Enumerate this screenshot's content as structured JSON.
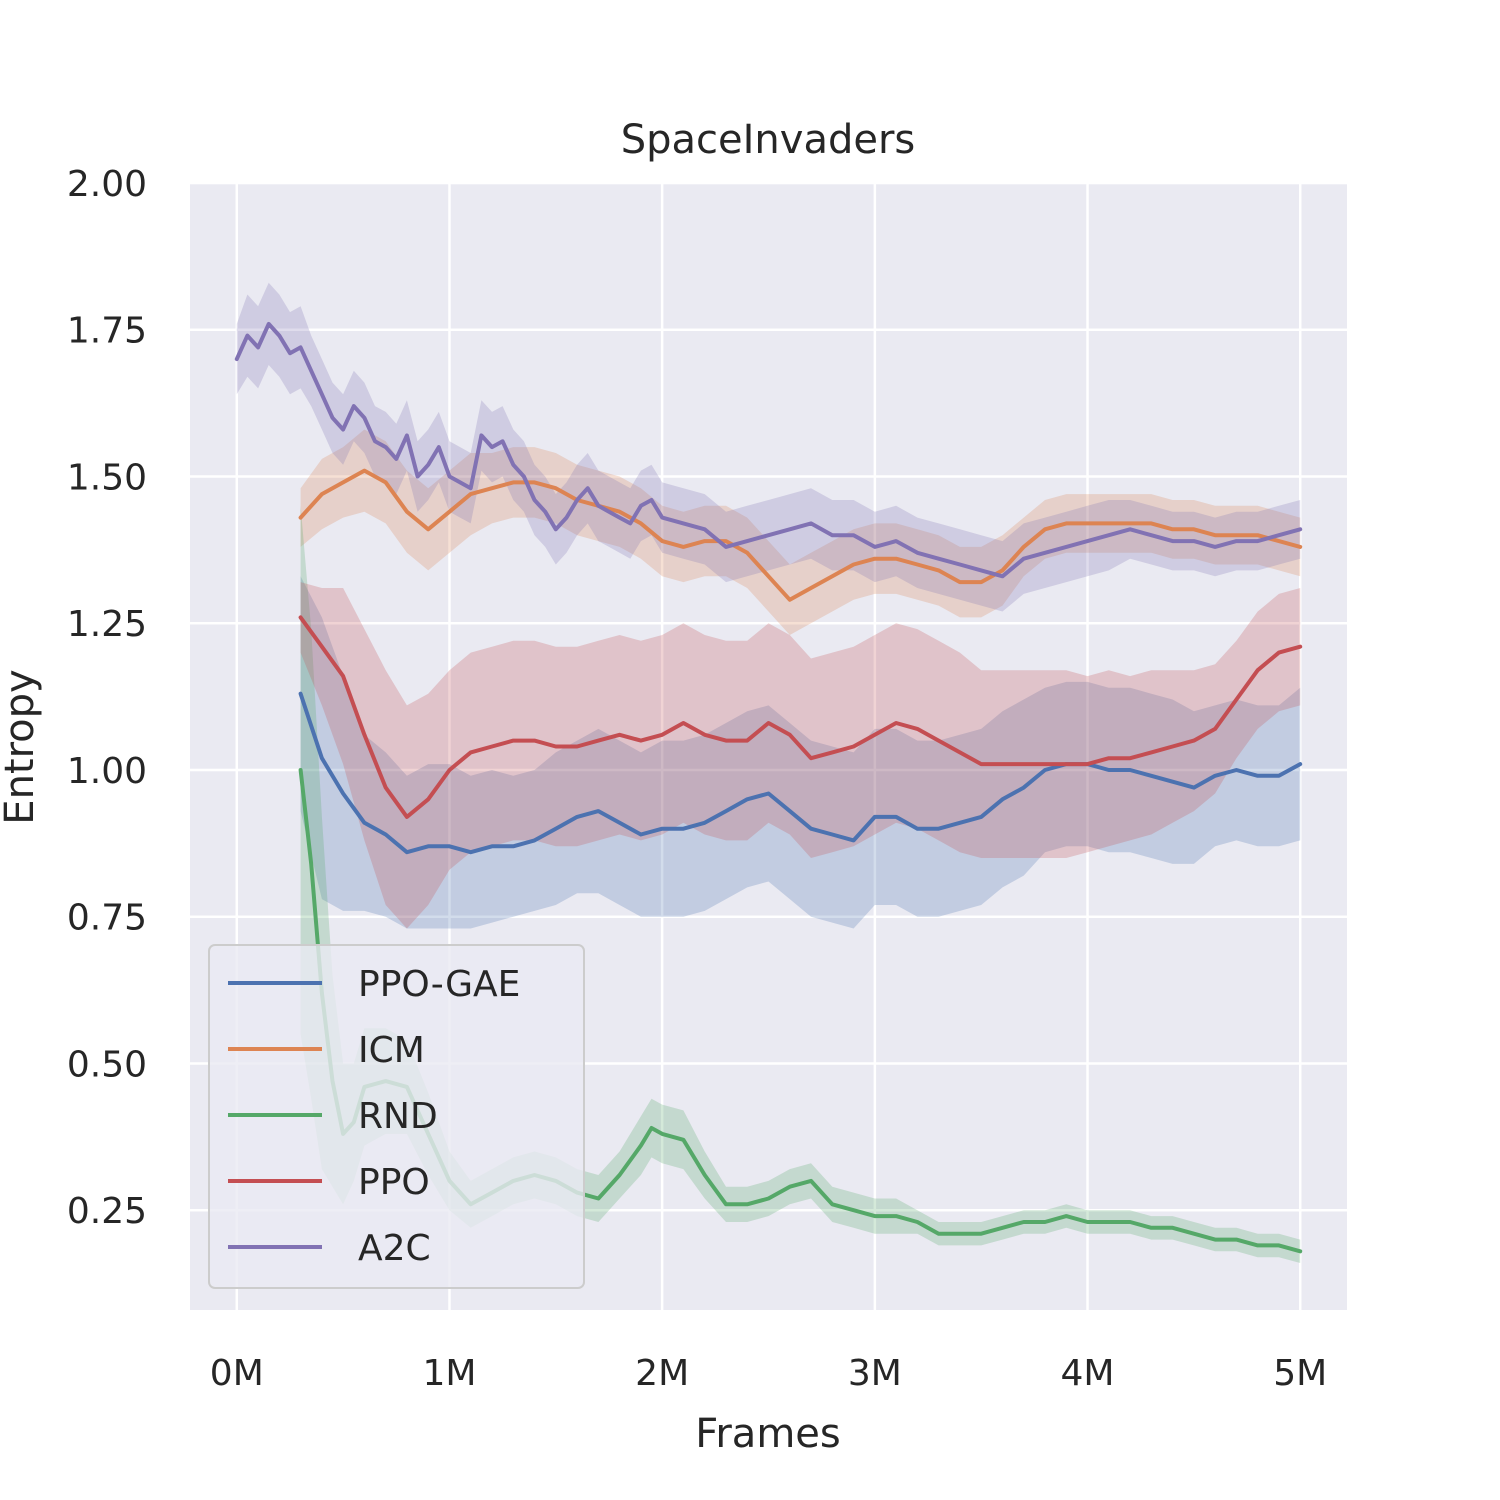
{
  "chart_data": {
    "type": "line",
    "title": "SpaceInvaders",
    "xlabel": "Frames",
    "ylabel": "Entropy",
    "xlim": [
      -0.22,
      5.22
    ],
    "ylim": [
      0.08,
      2.0
    ],
    "xticks": [
      0,
      1,
      2,
      3,
      4,
      5
    ],
    "xtick_labels": [
      "0M",
      "1M",
      "2M",
      "3M",
      "4M",
      "5M"
    ],
    "yticks": [
      0.25,
      0.5,
      0.75,
      1.0,
      1.25,
      1.5,
      1.75,
      2.0
    ],
    "ytick_labels": [
      "0.25",
      "0.50",
      "0.75",
      "1.00",
      "1.25",
      "1.50",
      "1.75",
      "2.00"
    ],
    "grid": true,
    "legend_position": "lower-left",
    "series": [
      {
        "name": "PPO-GAE",
        "color": "#4c72b0",
        "x": [
          0.3,
          0.4,
          0.5,
          0.6,
          0.7,
          0.8,
          0.9,
          1.0,
          1.1,
          1.2,
          1.3,
          1.4,
          1.5,
          1.6,
          1.7,
          1.8,
          1.9,
          2.0,
          2.1,
          2.2,
          2.3,
          2.4,
          2.5,
          2.6,
          2.7,
          2.8,
          2.9,
          3.0,
          3.1,
          3.2,
          3.3,
          3.4,
          3.5,
          3.6,
          3.7,
          3.8,
          3.9,
          4.0,
          4.1,
          4.2,
          4.3,
          4.4,
          4.5,
          4.6,
          4.7,
          4.8,
          4.9,
          5.0
        ],
        "y": [
          1.13,
          1.02,
          0.96,
          0.91,
          0.89,
          0.86,
          0.87,
          0.87,
          0.86,
          0.87,
          0.87,
          0.88,
          0.9,
          0.92,
          0.93,
          0.91,
          0.89,
          0.9,
          0.9,
          0.91,
          0.93,
          0.95,
          0.96,
          0.93,
          0.9,
          0.89,
          0.88,
          0.92,
          0.92,
          0.9,
          0.9,
          0.91,
          0.92,
          0.95,
          0.97,
          1.0,
          1.01,
          1.01,
          1.0,
          1.0,
          0.99,
          0.98,
          0.97,
          0.99,
          1.0,
          0.99,
          0.99,
          1.01
        ],
        "band": [
          0.2,
          0.24,
          0.2,
          0.15,
          0.14,
          0.13,
          0.14,
          0.14,
          0.13,
          0.13,
          0.12,
          0.12,
          0.13,
          0.13,
          0.14,
          0.14,
          0.14,
          0.15,
          0.15,
          0.15,
          0.15,
          0.15,
          0.15,
          0.15,
          0.15,
          0.15,
          0.15,
          0.15,
          0.15,
          0.15,
          0.15,
          0.15,
          0.15,
          0.15,
          0.15,
          0.14,
          0.14,
          0.14,
          0.14,
          0.14,
          0.14,
          0.14,
          0.13,
          0.12,
          0.12,
          0.12,
          0.12,
          0.13
        ]
      },
      {
        "name": "ICM",
        "color": "#dd8452",
        "x": [
          0.3,
          0.4,
          0.5,
          0.6,
          0.7,
          0.8,
          0.9,
          1.0,
          1.1,
          1.2,
          1.3,
          1.4,
          1.5,
          1.6,
          1.7,
          1.8,
          1.9,
          2.0,
          2.1,
          2.2,
          2.3,
          2.4,
          2.5,
          2.6,
          2.7,
          2.8,
          2.9,
          3.0,
          3.1,
          3.2,
          3.3,
          3.4,
          3.5,
          3.6,
          3.7,
          3.8,
          3.9,
          4.0,
          4.1,
          4.2,
          4.3,
          4.4,
          4.5,
          4.6,
          4.7,
          4.8,
          4.9,
          5.0
        ],
        "y": [
          1.43,
          1.47,
          1.49,
          1.51,
          1.49,
          1.44,
          1.41,
          1.44,
          1.47,
          1.48,
          1.49,
          1.49,
          1.48,
          1.46,
          1.45,
          1.44,
          1.42,
          1.39,
          1.38,
          1.39,
          1.39,
          1.37,
          1.33,
          1.29,
          1.31,
          1.33,
          1.35,
          1.36,
          1.36,
          1.35,
          1.34,
          1.32,
          1.32,
          1.34,
          1.38,
          1.41,
          1.42,
          1.42,
          1.42,
          1.42,
          1.42,
          1.41,
          1.41,
          1.4,
          1.4,
          1.4,
          1.39,
          1.38
        ],
        "band": [
          0.05,
          0.06,
          0.06,
          0.07,
          0.07,
          0.07,
          0.07,
          0.07,
          0.07,
          0.06,
          0.06,
          0.06,
          0.06,
          0.06,
          0.06,
          0.06,
          0.06,
          0.06,
          0.06,
          0.06,
          0.06,
          0.06,
          0.06,
          0.06,
          0.06,
          0.06,
          0.06,
          0.06,
          0.06,
          0.06,
          0.06,
          0.06,
          0.06,
          0.06,
          0.05,
          0.05,
          0.05,
          0.05,
          0.05,
          0.05,
          0.05,
          0.05,
          0.05,
          0.05,
          0.05,
          0.05,
          0.05,
          0.05
        ]
      },
      {
        "name": "RND",
        "color": "#55a868",
        "x": [
          0.3,
          0.35,
          0.4,
          0.45,
          0.5,
          0.55,
          0.6,
          0.7,
          0.8,
          0.9,
          1.0,
          1.1,
          1.2,
          1.3,
          1.4,
          1.5,
          1.6,
          1.7,
          1.8,
          1.9,
          1.95,
          2.0,
          2.1,
          2.2,
          2.3,
          2.4,
          2.5,
          2.6,
          2.7,
          2.8,
          2.9,
          3.0,
          3.1,
          3.2,
          3.3,
          3.4,
          3.5,
          3.6,
          3.7,
          3.8,
          3.9,
          4.0,
          4.1,
          4.2,
          4.3,
          4.4,
          4.5,
          4.6,
          4.7,
          4.8,
          4.9,
          5.0
        ],
        "y": [
          1.0,
          0.84,
          0.62,
          0.47,
          0.38,
          0.4,
          0.46,
          0.47,
          0.46,
          0.38,
          0.3,
          0.26,
          0.28,
          0.3,
          0.31,
          0.3,
          0.28,
          0.27,
          0.31,
          0.36,
          0.39,
          0.38,
          0.37,
          0.31,
          0.26,
          0.26,
          0.27,
          0.29,
          0.3,
          0.26,
          0.25,
          0.24,
          0.24,
          0.23,
          0.21,
          0.21,
          0.21,
          0.22,
          0.23,
          0.23,
          0.24,
          0.23,
          0.23,
          0.23,
          0.22,
          0.22,
          0.21,
          0.2,
          0.2,
          0.19,
          0.19,
          0.18
        ],
        "band": [
          0.45,
          0.4,
          0.3,
          0.18,
          0.12,
          0.1,
          0.1,
          0.09,
          0.08,
          0.07,
          0.05,
          0.04,
          0.04,
          0.04,
          0.04,
          0.04,
          0.04,
          0.04,
          0.04,
          0.05,
          0.05,
          0.05,
          0.05,
          0.04,
          0.03,
          0.03,
          0.03,
          0.03,
          0.03,
          0.03,
          0.03,
          0.03,
          0.03,
          0.02,
          0.02,
          0.02,
          0.02,
          0.02,
          0.02,
          0.02,
          0.02,
          0.02,
          0.02,
          0.02,
          0.02,
          0.02,
          0.02,
          0.02,
          0.02,
          0.02,
          0.02,
          0.02
        ]
      },
      {
        "name": "PPO",
        "color": "#c44e52",
        "x": [
          0.3,
          0.4,
          0.5,
          0.6,
          0.7,
          0.8,
          0.9,
          1.0,
          1.1,
          1.2,
          1.3,
          1.4,
          1.5,
          1.6,
          1.7,
          1.8,
          1.9,
          2.0,
          2.1,
          2.2,
          2.3,
          2.4,
          2.5,
          2.6,
          2.7,
          2.8,
          2.9,
          3.0,
          3.1,
          3.2,
          3.3,
          3.4,
          3.5,
          3.6,
          3.7,
          3.8,
          3.9,
          4.0,
          4.1,
          4.2,
          4.3,
          4.4,
          4.5,
          4.6,
          4.7,
          4.8,
          4.9,
          5.0
        ],
        "y": [
          1.26,
          1.21,
          1.16,
          1.06,
          0.97,
          0.92,
          0.95,
          1.0,
          1.03,
          1.04,
          1.05,
          1.05,
          1.04,
          1.04,
          1.05,
          1.06,
          1.05,
          1.06,
          1.08,
          1.06,
          1.05,
          1.05,
          1.08,
          1.06,
          1.02,
          1.03,
          1.04,
          1.06,
          1.08,
          1.07,
          1.05,
          1.03,
          1.01,
          1.01,
          1.01,
          1.01,
          1.01,
          1.01,
          1.02,
          1.02,
          1.03,
          1.04,
          1.05,
          1.07,
          1.12,
          1.17,
          1.2,
          1.21
        ],
        "band": [
          0.06,
          0.1,
          0.15,
          0.18,
          0.2,
          0.19,
          0.18,
          0.17,
          0.17,
          0.17,
          0.17,
          0.17,
          0.17,
          0.17,
          0.17,
          0.17,
          0.17,
          0.17,
          0.17,
          0.17,
          0.17,
          0.17,
          0.17,
          0.17,
          0.17,
          0.17,
          0.17,
          0.17,
          0.17,
          0.17,
          0.17,
          0.17,
          0.16,
          0.16,
          0.16,
          0.16,
          0.16,
          0.15,
          0.15,
          0.14,
          0.14,
          0.13,
          0.12,
          0.11,
          0.1,
          0.1,
          0.1,
          0.1
        ]
      },
      {
        "name": "A2C",
        "color": "#8172b3",
        "x": [
          0.0,
          0.05,
          0.1,
          0.15,
          0.2,
          0.25,
          0.3,
          0.35,
          0.4,
          0.45,
          0.5,
          0.55,
          0.6,
          0.65,
          0.7,
          0.75,
          0.8,
          0.85,
          0.9,
          0.95,
          1.0,
          1.05,
          1.1,
          1.15,
          1.2,
          1.25,
          1.3,
          1.35,
          1.4,
          1.45,
          1.5,
          1.55,
          1.6,
          1.65,
          1.7,
          1.75,
          1.8,
          1.85,
          1.9,
          1.95,
          2.0,
          2.1,
          2.2,
          2.3,
          2.4,
          2.5,
          2.6,
          2.7,
          2.8,
          2.9,
          3.0,
          3.1,
          3.2,
          3.3,
          3.4,
          3.5,
          3.6,
          3.7,
          3.8,
          3.9,
          4.0,
          4.1,
          4.2,
          4.3,
          4.4,
          4.5,
          4.6,
          4.7,
          4.8,
          4.9,
          5.0
        ],
        "y": [
          1.7,
          1.74,
          1.72,
          1.76,
          1.74,
          1.71,
          1.72,
          1.68,
          1.64,
          1.6,
          1.58,
          1.62,
          1.6,
          1.56,
          1.55,
          1.53,
          1.57,
          1.5,
          1.52,
          1.55,
          1.5,
          1.49,
          1.48,
          1.57,
          1.55,
          1.56,
          1.52,
          1.5,
          1.46,
          1.44,
          1.41,
          1.43,
          1.46,
          1.48,
          1.45,
          1.44,
          1.43,
          1.42,
          1.45,
          1.46,
          1.43,
          1.42,
          1.41,
          1.38,
          1.39,
          1.4,
          1.41,
          1.42,
          1.4,
          1.4,
          1.38,
          1.39,
          1.37,
          1.36,
          1.35,
          1.34,
          1.33,
          1.36,
          1.37,
          1.38,
          1.39,
          1.4,
          1.41,
          1.4,
          1.39,
          1.39,
          1.38,
          1.39,
          1.39,
          1.4,
          1.41
        ],
        "band": [
          0.06,
          0.07,
          0.07,
          0.07,
          0.07,
          0.07,
          0.07,
          0.06,
          0.06,
          0.06,
          0.06,
          0.06,
          0.06,
          0.06,
          0.06,
          0.06,
          0.06,
          0.06,
          0.06,
          0.06,
          0.06,
          0.06,
          0.06,
          0.06,
          0.06,
          0.06,
          0.06,
          0.06,
          0.06,
          0.06,
          0.06,
          0.06,
          0.06,
          0.06,
          0.06,
          0.06,
          0.06,
          0.06,
          0.06,
          0.06,
          0.06,
          0.06,
          0.06,
          0.06,
          0.06,
          0.06,
          0.06,
          0.06,
          0.06,
          0.06,
          0.06,
          0.06,
          0.06,
          0.06,
          0.06,
          0.06,
          0.06,
          0.06,
          0.06,
          0.06,
          0.06,
          0.06,
          0.05,
          0.05,
          0.05,
          0.05,
          0.05,
          0.05,
          0.05,
          0.05,
          0.05
        ]
      }
    ]
  }
}
